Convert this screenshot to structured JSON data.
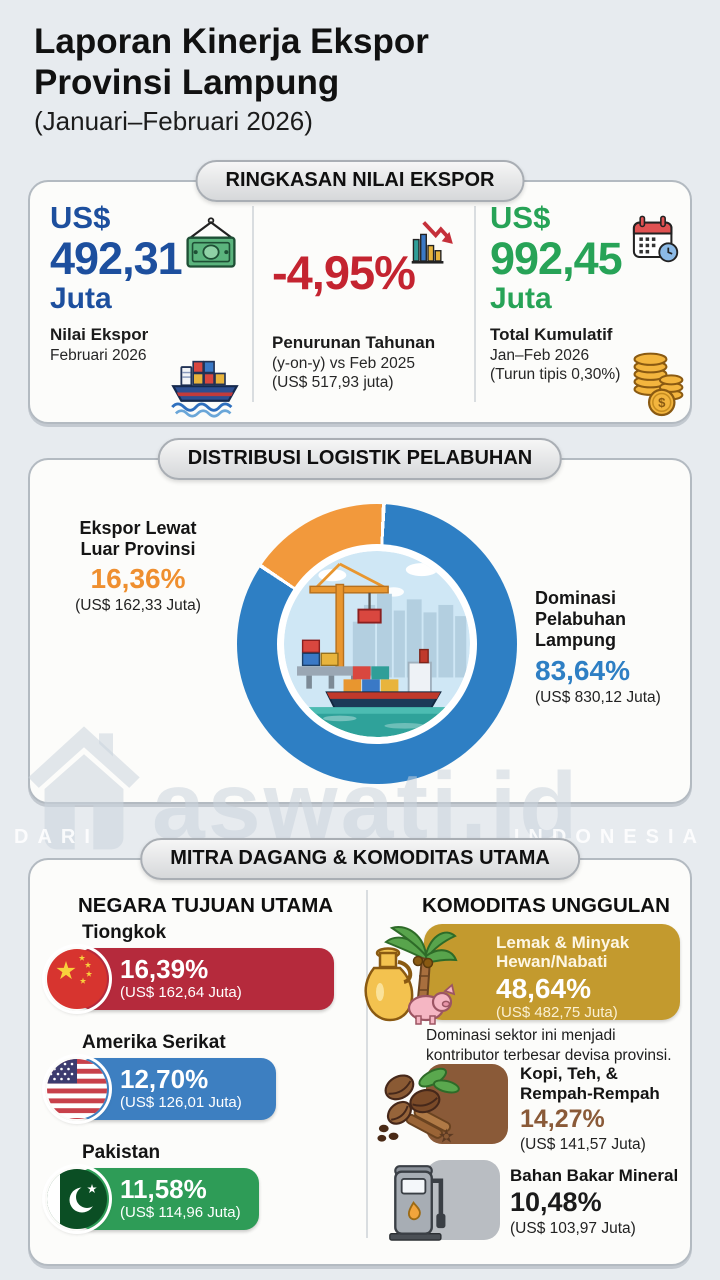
{
  "page": {
    "title_line1": "Laporan Kinerja Ekspor",
    "title_line2": "Provinsi Lampung",
    "subtitle": "(Januari–Februari 2026)"
  },
  "colors": {
    "page_bg": "#e7ebef",
    "card_bg": "#fcfcfa",
    "blue": "#1d4f9e",
    "red": "#c42430",
    "green": "#27a357",
    "orange": "#ef8f2f",
    "donut_blue": "#2e7fc4",
    "china_red": "#b52a3c",
    "us_blue": "#3d7fc1",
    "pak_green": "#2e9c57",
    "gold": "#c39a2e",
    "brown": "#8a5a38",
    "gray_box": "#b9bdc2"
  },
  "summary": {
    "header": "RINGKASAN NILAI EKSPOR",
    "stats": [
      {
        "currency": "US$",
        "value": "492,31",
        "unit": "Juta",
        "label": "Nilai Ekspor",
        "sub1": "Februari 2026"
      },
      {
        "value": "-4,95%",
        "label": "Penurunan Tahunan",
        "sub1": "(y-on-y) vs Feb 2025",
        "sub2": "(US$ 517,93 juta)"
      },
      {
        "currency": "US$",
        "value": "992,45",
        "unit": "Juta",
        "label": "Total Kumulatif",
        "sub1": "Jan–Feb 2026",
        "sub2": "(Turun tipis 0,30%)"
      }
    ]
  },
  "distribution": {
    "header": "DISTRIBUSI LOGISTIK PELABUHAN",
    "outside": {
      "line1": "Ekspor Lewat",
      "line2": "Luar Provinsi",
      "pct": "16,36%",
      "amount": "(US$ 162,33 Juta)"
    },
    "domestic": {
      "line1": "Dominasi",
      "line2": "Pelabuhan",
      "line3": "Lampung",
      "pct": "83,64%",
      "amount": "(US$ 830,12 Juta)"
    }
  },
  "chart_data": {
    "type": "pie",
    "donut": true,
    "title": "DISTRIBUSI LOGISTIK PELABUHAN",
    "labels": [
      "Dominasi Pelabuhan Lampung",
      "Ekspor Lewat Luar Provinsi"
    ],
    "values": [
      83.64,
      16.36
    ],
    "amount_labels": [
      "US$ 830,12 Juta",
      "US$ 162,33 Juta"
    ],
    "colors": [
      "#2e7fc4",
      "#f2993c"
    ],
    "legend_position": "sides",
    "center_illustration": "port-crane-and-cargo-ship"
  },
  "partners": {
    "header": "MITRA DAGANG & KOMODITAS UTAMA",
    "countries": {
      "heading": "NEGARA TUJUAN UTAMA",
      "items": [
        {
          "name": "Tiongkok",
          "pct": "16,39%",
          "pct_num": 16.39,
          "amount": "(US$ 162,64 Juta)",
          "color": "#b52a3c"
        },
        {
          "name": "Amerika Serikat",
          "pct": "12,70%",
          "pct_num": 12.7,
          "amount": "(US$ 126,01 Juta)",
          "color": "#3d7fc1"
        },
        {
          "name": "Pakistan",
          "pct": "11,58%",
          "pct_num": 11.58,
          "amount": "(US$ 114,96 Juta)",
          "color": "#2e9c57"
        }
      ]
    },
    "commodities": {
      "heading": "KOMODITAS UNGGULAN",
      "featured": {
        "name_line1": "Lemak & Minyak",
        "name_line2": "Hewan/Nabati",
        "pct": "48,64%",
        "amount": "(US$ 482,75 Juta)",
        "color": "#c39a2e",
        "note_line1": "Dominasi sektor ini menjadi",
        "note_line2": "kontributor terbesar devisa provinsi."
      },
      "items": [
        {
          "name_line1": "Kopi, Teh, &",
          "name_line2": "Rempah-Rempah",
          "pct": "14,27%",
          "amount": "(US$ 141,57 Juta)",
          "accent": "#8a5a38",
          "box_color": "#8a5a38"
        },
        {
          "name_line1": "Bahan Bakar Mineral",
          "pct": "10,48%",
          "amount": "(US$ 103,97 Juta)",
          "accent": "#1b1b1b",
          "box_color": "#b9bdc2"
        }
      ]
    }
  },
  "watermark": {
    "brand": "aswati.id",
    "caption_left": "DARI",
    "caption_right": "INDONESIA"
  }
}
